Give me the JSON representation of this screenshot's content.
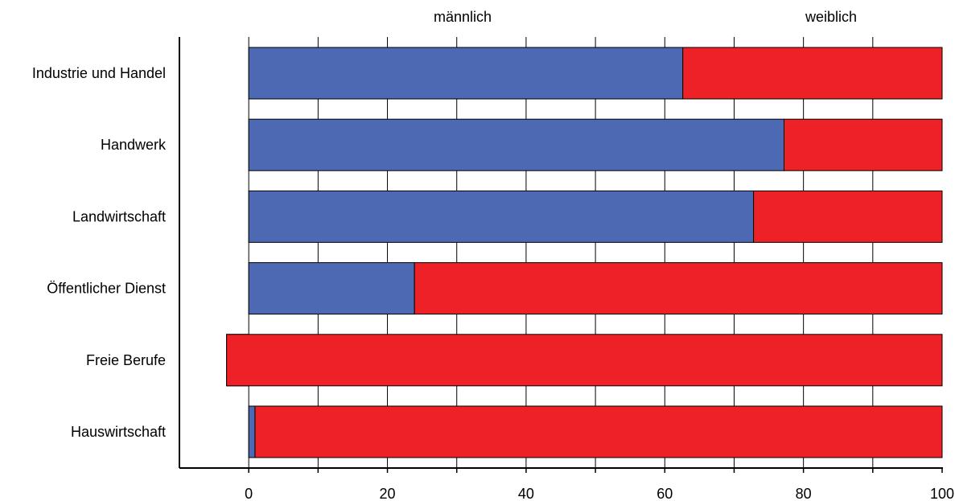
{
  "chart_data": {
    "type": "bar",
    "orientation": "horizontal",
    "stacked": true,
    "categories": [
      "Industrie und Handel",
      "Handwerk",
      "Landwirtschaft",
      "Öffentlicher Dienst",
      "Freie Berufe",
      "Hauswirtschaft"
    ],
    "series": [
      {
        "name": "männlich",
        "color": "#4d69b3",
        "values": [
          62.6,
          77.2,
          72.8,
          23.9,
          -3.2,
          0.9
        ]
      },
      {
        "name": "weiblich",
        "color": "#ee2226",
        "values": [
          37.4,
          22.8,
          27.2,
          76.1,
          103.2,
          99.1
        ]
      }
    ],
    "xlim": [
      -10,
      100
    ],
    "xticks": [
      0,
      20,
      40,
      60,
      80,
      100
    ],
    "xminor_ticks": [
      -10,
      10,
      30,
      50,
      70,
      90
    ],
    "grid": true,
    "legend_position": "top",
    "title": "",
    "xlabel": "",
    "ylabel": ""
  }
}
